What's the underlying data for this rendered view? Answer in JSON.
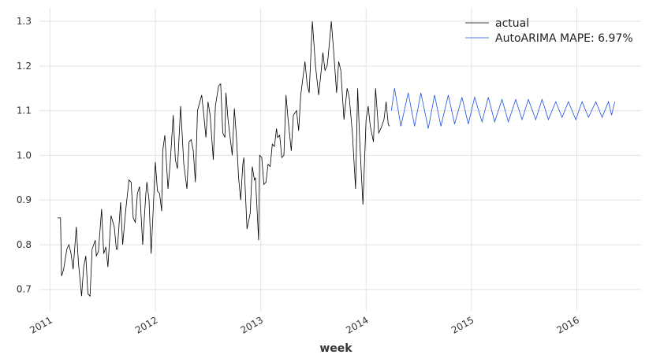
{
  "chart_data": {
    "type": "line",
    "xlabel": "week",
    "xlim": [
      2010.9,
      2016.61
    ],
    "ylim": [
      0.652,
      1.33
    ],
    "xticks": [
      2011,
      2012,
      2013,
      2014,
      2015,
      2016
    ],
    "yticks": [
      0.7,
      0.8,
      0.9,
      {
        "value": 1.0,
        "label": "1.0"
      },
      1.1,
      1.2,
      1.3
    ],
    "grid": true,
    "legend": "upper right",
    "series": [
      {
        "name": "actual",
        "color": "#000000",
        "x": [
          2011.07,
          2011.1,
          2011.11,
          2011.13,
          2011.16,
          2011.18,
          2011.2,
          2011.22,
          2011.25,
          2011.27,
          2011.3,
          2011.32,
          2011.34,
          2011.36,
          2011.38,
          2011.4,
          2011.43,
          2011.44,
          2011.46,
          2011.49,
          2011.51,
          2011.53,
          2011.55,
          2011.58,
          2011.61,
          2011.63,
          2011.64,
          2011.67,
          2011.69,
          2011.72,
          2011.75,
          2011.77,
          2011.79,
          2011.81,
          2011.83,
          2011.85,
          2011.88,
          2011.91,
          2011.92,
          2011.94,
          2011.96,
          2011.98,
          2012.0,
          2012.02,
          2012.04,
          2012.06,
          2012.07,
          2012.09,
          2012.12,
          2012.14,
          2012.17,
          2012.19,
          2012.21,
          2012.24,
          2012.27,
          2012.3,
          2012.32,
          2012.34,
          2012.36,
          2012.38,
          2012.4,
          2012.44,
          2012.46,
          2012.48,
          2012.5,
          2012.52,
          2012.55,
          2012.57,
          2012.6,
          2012.62,
          2012.64,
          2012.66,
          2012.67,
          2012.69,
          2012.72,
          2012.73,
          2012.75,
          2012.77,
          2012.79,
          2012.81,
          2012.83,
          2012.84,
          2012.87,
          2012.9,
          2012.92,
          2012.94,
          2012.95,
          2012.98,
          2012.99,
          2013.01,
          2013.03,
          2013.05,
          2013.07,
          2013.09,
          2013.11,
          2013.13,
          2013.15,
          2013.16,
          2013.18,
          2013.2,
          2013.22,
          2013.24,
          2013.26,
          2013.29,
          2013.31,
          2013.34,
          2013.36,
          2013.38,
          2013.42,
          2013.44,
          2013.46,
          2013.49,
          2013.52,
          2013.55,
          2013.57,
          2013.59,
          2013.61,
          2013.63,
          2013.64,
          2013.67,
          2013.69,
          2013.72,
          2013.74,
          2013.76,
          2013.79,
          2013.82,
          2013.84,
          2013.87,
          2013.9,
          2013.92,
          2013.94,
          2013.97,
          2014.0,
          2014.02,
          2014.04,
          2014.07,
          2014.09,
          2014.12,
          2014.14,
          2014.17,
          2014.19,
          2014.21,
          2014.22
        ],
        "values": [
          0.86,
          0.86,
          0.73,
          0.745,
          0.79,
          0.8,
          0.78,
          0.745,
          0.84,
          0.76,
          0.685,
          0.75,
          0.775,
          0.69,
          0.685,
          0.79,
          0.81,
          0.775,
          0.785,
          0.88,
          0.78,
          0.795,
          0.75,
          0.865,
          0.84,
          0.79,
          0.79,
          0.895,
          0.8,
          0.88,
          0.945,
          0.94,
          0.86,
          0.85,
          0.915,
          0.93,
          0.8,
          0.915,
          0.94,
          0.9,
          0.78,
          0.88,
          0.985,
          0.92,
          0.915,
          0.875,
          1.01,
          1.045,
          0.925,
          0.98,
          1.09,
          0.99,
          0.97,
          1.11,
          0.98,
          0.925,
          1.03,
          1.035,
          1.01,
          0.94,
          1.1,
          1.135,
          1.09,
          1.04,
          1.12,
          1.09,
          0.99,
          1.11,
          1.155,
          1.16,
          1.05,
          1.04,
          1.14,
          1.08,
          1.02,
          1.0,
          1.105,
          1.04,
          0.95,
          0.9,
          0.98,
          0.995,
          0.835,
          0.87,
          0.975,
          0.945,
          0.95,
          0.81,
          1.0,
          0.995,
          0.935,
          0.94,
          0.98,
          0.975,
          1.025,
          1.02,
          1.06,
          1.04,
          1.045,
          0.995,
          1.0,
          1.135,
          1.08,
          1.01,
          1.09,
          1.1,
          1.055,
          1.135,
          1.21,
          1.16,
          1.14,
          1.3,
          1.2,
          1.135,
          1.18,
          1.23,
          1.19,
          1.2,
          1.22,
          1.3,
          1.24,
          1.14,
          1.21,
          1.19,
          1.08,
          1.15,
          1.13,
          1.05,
          0.925,
          1.15,
          1.03,
          0.89,
          1.08,
          1.11,
          1.065,
          1.03,
          1.15,
          1.05,
          1.06,
          1.08,
          1.12,
          1.07,
          1.065
        ]
      },
      {
        "name": "AutoARIMA MAPE: 6.97%",
        "color": "#1f4fe0",
        "x": [
          2014.24,
          2014.27,
          2014.33,
          2014.4,
          2014.46,
          2014.52,
          2014.59,
          2014.65,
          2014.71,
          2014.78,
          2014.84,
          2014.91,
          2014.97,
          2015.03,
          2015.1,
          2015.16,
          2015.22,
          2015.29,
          2015.35,
          2015.42,
          2015.48,
          2015.54,
          2015.61,
          2015.67,
          2015.73,
          2015.8,
          2015.86,
          2015.92,
          2015.99,
          2016.05,
          2016.11,
          2016.18,
          2016.24,
          2016.3,
          2016.33,
          2016.36
        ],
        "values": [
          1.1,
          1.15,
          1.065,
          1.14,
          1.065,
          1.14,
          1.06,
          1.135,
          1.065,
          1.135,
          1.07,
          1.13,
          1.07,
          1.13,
          1.075,
          1.13,
          1.075,
          1.125,
          1.075,
          1.125,
          1.08,
          1.125,
          1.08,
          1.125,
          1.08,
          1.12,
          1.085,
          1.12,
          1.08,
          1.12,
          1.085,
          1.12,
          1.085,
          1.12,
          1.09,
          1.12
        ]
      }
    ]
  }
}
